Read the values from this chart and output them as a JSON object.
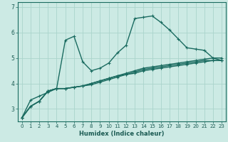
{
  "xlabel": "Humidex (Indice chaleur)",
  "bg_color": "#cceae4",
  "grid_color": "#aad4cc",
  "line_color": "#1a6b60",
  "xlim": [
    -0.5,
    23.5
  ],
  "ylim": [
    2.5,
    7.2
  ],
  "yticks": [
    3,
    4,
    5,
    6,
    7
  ],
  "xticks": [
    0,
    1,
    2,
    3,
    4,
    5,
    6,
    7,
    8,
    9,
    10,
    11,
    12,
    13,
    14,
    15,
    16,
    17,
    18,
    19,
    20,
    21,
    22,
    23
  ],
  "series": [
    [
      2.65,
      3.35,
      3.5,
      3.65,
      3.8,
      5.7,
      5.85,
      4.85,
      4.5,
      4.6,
      4.8,
      5.2,
      5.5,
      6.55,
      6.6,
      6.65,
      6.4,
      6.1,
      5.75,
      5.4,
      5.35,
      5.3,
      5.0,
      4.9
    ],
    [
      2.65,
      3.1,
      3.3,
      3.7,
      3.8,
      3.8,
      3.85,
      3.9,
      4.0,
      4.1,
      4.2,
      4.3,
      4.4,
      4.5,
      4.6,
      4.65,
      4.7,
      4.75,
      4.8,
      4.85,
      4.9,
      4.95,
      5.0,
      5.0
    ],
    [
      2.65,
      3.1,
      3.3,
      3.7,
      3.8,
      3.8,
      3.85,
      3.9,
      3.95,
      4.05,
      4.15,
      4.25,
      4.35,
      4.45,
      4.55,
      4.6,
      4.65,
      4.7,
      4.75,
      4.8,
      4.85,
      4.9,
      4.9,
      4.9
    ],
    [
      2.65,
      3.1,
      3.3,
      3.7,
      3.8,
      3.8,
      3.85,
      3.9,
      4.0,
      4.1,
      4.2,
      4.3,
      4.35,
      4.4,
      4.5,
      4.55,
      4.6,
      4.65,
      4.7,
      4.75,
      4.8,
      4.85,
      4.9,
      4.9
    ]
  ],
  "marker": "+"
}
